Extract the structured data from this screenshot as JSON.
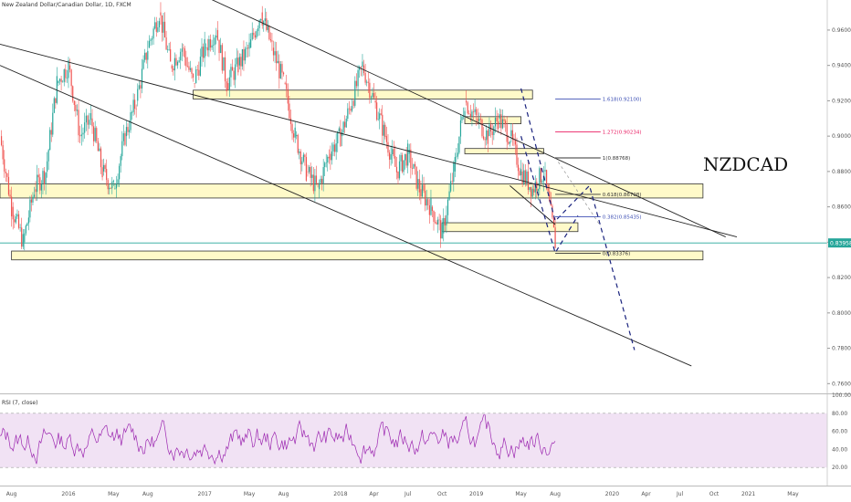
{
  "header": {
    "symbol_title": "New Zealand Dollar/Canadian Dollar, 1D, FXCM",
    "watermark": "NZDCAD"
  },
  "rsi": {
    "title": "RSI (7, close)",
    "y_ticks": [
      "100.00",
      "80.00",
      "60.00",
      "40.00",
      "20.00"
    ],
    "band_upper": 80,
    "band_lower": 20,
    "color": "#9c27b0"
  },
  "x_axis": {
    "ticks": [
      "Aug",
      "2016",
      "May",
      "Aug",
      "2017",
      "May",
      "Aug",
      "2018",
      "Apr",
      "Jul",
      "Oct",
      "2019",
      "May",
      "Aug",
      "2020",
      "Apr",
      "Jul",
      "Oct",
      "2021",
      "May"
    ]
  },
  "annotations": {
    "fib_levels": [
      {
        "label": "1.618(0.92100)",
        "value": 0.921,
        "color": "#3f51b5"
      },
      {
        "label": "1.272(0.90234)",
        "value": 0.90234,
        "color": "#e91e63"
      },
      {
        "label": "1(0.88768)",
        "value": 0.88768,
        "color": "#333333"
      },
      {
        "label": "0.618(0.86708)",
        "value": 0.86708,
        "color": "#333333"
      },
      {
        "label": "0.382(0.85435)",
        "value": 0.85435,
        "color": "#3f51b5"
      },
      {
        "label": "0(0.83376)",
        "value": 0.83376,
        "color": "#333333"
      }
    ],
    "current_price": "0.83958"
  },
  "chart_data": {
    "type": "candlestick",
    "ylim": [
      0.755,
      0.977
    ],
    "y_ticks": [
      "0.96000",
      "0.94000",
      "0.92000",
      "0.90000",
      "0.88000",
      "0.86000",
      "0.84000",
      "0.82000",
      "0.80000",
      "0.78000",
      "0.76000"
    ],
    "last_price": 0.83958,
    "colors": {
      "up": "#26a69a",
      "down": "#ef5350",
      "zone_fill": "#fff59d",
      "zone_border": "#333333",
      "current_line": "#26a69a",
      "projection": "#1a237e"
    },
    "price_path": [
      {
        "date": "2015-07",
        "price": 0.9
      },
      {
        "date": "2015-08",
        "price": 0.86
      },
      {
        "date": "2015-09",
        "price": 0.84
      },
      {
        "date": "2015-10",
        "price": 0.87
      },
      {
        "date": "2015-11",
        "price": 0.88
      },
      {
        "date": "2015-12",
        "price": 0.93
      },
      {
        "date": "2016-01",
        "price": 0.94
      },
      {
        "date": "2016-02",
        "price": 0.9
      },
      {
        "date": "2016-03",
        "price": 0.91
      },
      {
        "date": "2016-04",
        "price": 0.88
      },
      {
        "date": "2016-05",
        "price": 0.87
      },
      {
        "date": "2016-06",
        "price": 0.9
      },
      {
        "date": "2016-07",
        "price": 0.92
      },
      {
        "date": "2016-08",
        "price": 0.95
      },
      {
        "date": "2016-09",
        "price": 0.97
      },
      {
        "date": "2016-10",
        "price": 0.94
      },
      {
        "date": "2016-11",
        "price": 0.95
      },
      {
        "date": "2016-12",
        "price": 0.93
      },
      {
        "date": "2017-01",
        "price": 0.95
      },
      {
        "date": "2017-02",
        "price": 0.96
      },
      {
        "date": "2017-03",
        "price": 0.93
      },
      {
        "date": "2017-04",
        "price": 0.94
      },
      {
        "date": "2017-05",
        "price": 0.95
      },
      {
        "date": "2017-06",
        "price": 0.97
      },
      {
        "date": "2017-07",
        "price": 0.95
      },
      {
        "date": "2017-08",
        "price": 0.93
      },
      {
        "date": "2017-09",
        "price": 0.9
      },
      {
        "date": "2017-10",
        "price": 0.88
      },
      {
        "date": "2017-11",
        "price": 0.87
      },
      {
        "date": "2017-12",
        "price": 0.89
      },
      {
        "date": "2018-01",
        "price": 0.9
      },
      {
        "date": "2018-02",
        "price": 0.92
      },
      {
        "date": "2018-03",
        "price": 0.94
      },
      {
        "date": "2018-04",
        "price": 0.92
      },
      {
        "date": "2018-05",
        "price": 0.9
      },
      {
        "date": "2018-06",
        "price": 0.88
      },
      {
        "date": "2018-07",
        "price": 0.89
      },
      {
        "date": "2018-08",
        "price": 0.87
      },
      {
        "date": "2018-09",
        "price": 0.86
      },
      {
        "date": "2018-10",
        "price": 0.845
      },
      {
        "date": "2018-11",
        "price": 0.88
      },
      {
        "date": "2018-12",
        "price": 0.92
      },
      {
        "date": "2019-01",
        "price": 0.91
      },
      {
        "date": "2019-02",
        "price": 0.9
      },
      {
        "date": "2019-03",
        "price": 0.91
      },
      {
        "date": "2019-04",
        "price": 0.9
      },
      {
        "date": "2019-05",
        "price": 0.88
      },
      {
        "date": "2019-06",
        "price": 0.87
      },
      {
        "date": "2019-07",
        "price": 0.88
      },
      {
        "date": "2019-08",
        "price": 0.84
      }
    ],
    "zones": [
      {
        "from": "2016-12",
        "to": "2019-06",
        "low": 0.921,
        "high": 0.926
      },
      {
        "from": "2015-07",
        "to": "2020-09",
        "low": 0.865,
        "high": 0.873
      },
      {
        "from": "2018-12",
        "to": "2019-07",
        "low": 0.89,
        "high": 0.893
      },
      {
        "from": "2018-12",
        "to": "2019-05",
        "low": 0.907,
        "high": 0.911
      },
      {
        "from": "2018-10",
        "to": "2019-10",
        "low": 0.846,
        "high": 0.851
      },
      {
        "from": "2015-08",
        "to": "2020-09",
        "low": 0.83,
        "high": 0.835
      }
    ],
    "trendlines": [
      {
        "from": {
          "date": "2015-07",
          "price": 0.952
        },
        "to": {
          "date": "2020-12",
          "price": 0.843
        }
      },
      {
        "from": {
          "date": "2016-11",
          "price": 0.985
        },
        "to": {
          "date": "2020-11",
          "price": 0.843
        }
      },
      {
        "from": {
          "date": "2015-07",
          "price": 0.94
        },
        "to": {
          "date": "2020-08",
          "price": 0.77
        }
      },
      {
        "from": {
          "date": "2019-04",
          "price": 0.872
        },
        "to": {
          "date": "2019-08",
          "price": 0.85
        }
      }
    ]
  }
}
